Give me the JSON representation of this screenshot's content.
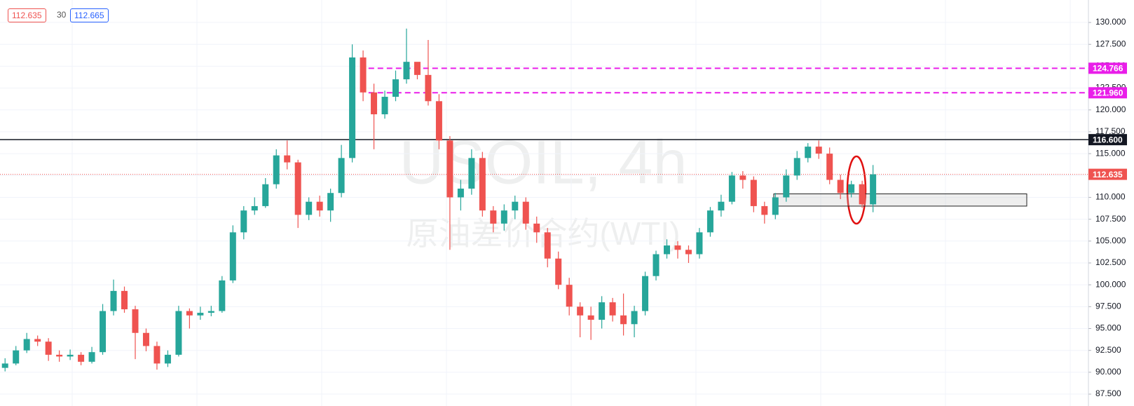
{
  "header": {
    "bid": "112.635",
    "spread": "30",
    "ask": "112.665"
  },
  "chart_data": {
    "type": "candlestick",
    "watermark": "USOIL, 4h",
    "watermark_subtitle": "原油差价合约(WTI)",
    "up_color": "#26a69a",
    "down_color": "#ef5350",
    "open": [
      90.5,
      91.0,
      92.5,
      93.8,
      93.5,
      92.0,
      91.8,
      92.0,
      91.2,
      92.3,
      97.0,
      99.3,
      97.2,
      94.5,
      93.0,
      91.0,
      92.0,
      97.0,
      96.5,
      96.8,
      97.0,
      100.5,
      106.0,
      108.5,
      109.0,
      111.5,
      114.8,
      114.0,
      108.0,
      109.5,
      108.5,
      110.5,
      114.5,
      126.0,
      122.0,
      119.5,
      121.5,
      123.5,
      125.5,
      124.0,
      121.0,
      116.5,
      110.0,
      111.0,
      114.5,
      108.5,
      107.0,
      108.5,
      109.5,
      107.0,
      106.0,
      103.0,
      100.0,
      97.5,
      96.5,
      96.0,
      98.0,
      96.5,
      95.5,
      97.0,
      101.0,
      103.5,
      104.5,
      104.0,
      103.5,
      106.0,
      108.5,
      109.5,
      112.5,
      112.0,
      109.0,
      108.0,
      110.0,
      112.5,
      114.5,
      115.8,
      115.0,
      112.0,
      110.5,
      111.5,
      109.2
    ],
    "high": [
      91.6,
      93.0,
      94.5,
      94.2,
      93.9,
      92.5,
      92.6,
      92.3,
      92.9,
      97.8,
      100.6,
      99.8,
      97.6,
      95.0,
      93.5,
      92.5,
      97.6,
      97.3,
      97.5,
      97.6,
      101.0,
      106.8,
      109.0,
      110.0,
      112.2,
      115.5,
      116.5,
      114.3,
      110.0,
      110.2,
      111.0,
      116.0,
      127.5,
      126.8,
      123.0,
      122.2,
      124.5,
      129.3,
      125.2,
      128.0,
      121.8,
      117.0,
      112.0,
      115.5,
      115.2,
      109.0,
      109.2,
      110.2,
      110.0,
      107.8,
      106.5,
      103.8,
      100.8,
      98.0,
      97.5,
      98.7,
      98.5,
      99.0,
      97.6,
      101.5,
      103.9,
      105.2,
      105.0,
      104.5,
      106.5,
      108.9,
      110.3,
      112.9,
      113.0,
      112.4,
      109.5,
      110.5,
      113.2,
      115.3,
      116.2,
      116.5,
      115.7,
      112.6,
      111.9,
      111.9,
      113.7
    ],
    "low": [
      90.1,
      90.8,
      92.2,
      93.0,
      91.3,
      91.2,
      91.4,
      90.8,
      91.0,
      92.0,
      96.5,
      96.8,
      91.5,
      92.4,
      90.3,
      90.6,
      91.8,
      95.0,
      96.0,
      96.4,
      96.8,
      100.2,
      105.2,
      108.0,
      108.8,
      111.0,
      113.2,
      106.5,
      107.4,
      107.8,
      107.2,
      110.0,
      114.0,
      121.0,
      115.5,
      119.0,
      121.0,
      123.0,
      123.5,
      120.5,
      115.5,
      104.0,
      108.5,
      110.3,
      107.8,
      106.0,
      106.2,
      107.5,
      106.3,
      104.8,
      102.0,
      99.5,
      96.5,
      94.0,
      93.7,
      95.0,
      95.8,
      94.2,
      94.0,
      96.5,
      100.5,
      103.0,
      103.0,
      102.5,
      103.0,
      105.5,
      107.8,
      109.2,
      111.0,
      108.3,
      107.0,
      107.5,
      109.5,
      112.0,
      114.0,
      114.4,
      111.5,
      109.8,
      110.0,
      108.8,
      108.3
    ],
    "close": [
      91.0,
      92.5,
      93.8,
      93.5,
      92.0,
      91.8,
      92.0,
      91.2,
      92.3,
      97.0,
      99.3,
      97.2,
      94.5,
      93.0,
      91.0,
      92.0,
      97.0,
      96.5,
      96.8,
      97.0,
      100.5,
      106.0,
      108.5,
      109.0,
      111.5,
      114.8,
      114.0,
      108.0,
      109.5,
      108.5,
      110.5,
      114.5,
      126.0,
      122.0,
      119.5,
      121.5,
      123.5,
      125.5,
      124.0,
      121.0,
      116.5,
      110.0,
      111.0,
      114.5,
      108.5,
      107.0,
      108.5,
      109.5,
      107.0,
      106.0,
      103.0,
      100.0,
      97.5,
      96.5,
      96.0,
      98.0,
      96.5,
      95.5,
      97.0,
      101.0,
      103.5,
      104.5,
      104.0,
      103.5,
      106.0,
      108.5,
      109.5,
      112.5,
      112.0,
      109.0,
      108.0,
      110.0,
      112.5,
      114.5,
      115.8,
      115.0,
      112.0,
      110.5,
      111.5,
      109.2,
      112.635
    ],
    "ylim": [
      86.14,
      132.57
    ],
    "yticks": [
      {
        "value": 87.5,
        "label": "87.500"
      },
      {
        "value": 90,
        "label": "90.000"
      },
      {
        "value": 92.5,
        "label": "92.500"
      },
      {
        "value": 95,
        "label": "95.000"
      },
      {
        "value": 97.5,
        "label": "97.500"
      },
      {
        "value": 100,
        "label": "100.000"
      },
      {
        "value": 102.5,
        "label": "102.500"
      },
      {
        "value": 105,
        "label": "105.000"
      },
      {
        "value": 107.5,
        "label": "107.500"
      },
      {
        "value": 110,
        "label": "110.000"
      },
      {
        "value": 112.5,
        "label": "112.500"
      },
      {
        "value": 115,
        "label": "115.000"
      },
      {
        "value": 117.5,
        "label": "117.500"
      },
      {
        "value": 120,
        "label": "120.000"
      },
      {
        "value": 122.5,
        "label": "122.500"
      },
      {
        "value": 125,
        "label": "125.000"
      },
      {
        "value": 127.5,
        "label": "127.500"
      },
      {
        "value": 130,
        "label": "130.000"
      }
    ],
    "grid": true,
    "levels": [
      {
        "value": 124.766,
        "label": "124.766",
        "color": "#e91ee9",
        "dash": "dashed"
      },
      {
        "value": 121.96,
        "label": "121.960",
        "color": "#e91ee9",
        "dash": "dashed"
      },
      {
        "value": 116.6,
        "label": "116.600",
        "color": "#131722",
        "dash": "solid"
      },
      {
        "value": 112.635,
        "label": "112.635",
        "color": "#ef5350",
        "dash": "dotted"
      }
    ],
    "zone": [
      109.0,
      110.4
    ]
  }
}
